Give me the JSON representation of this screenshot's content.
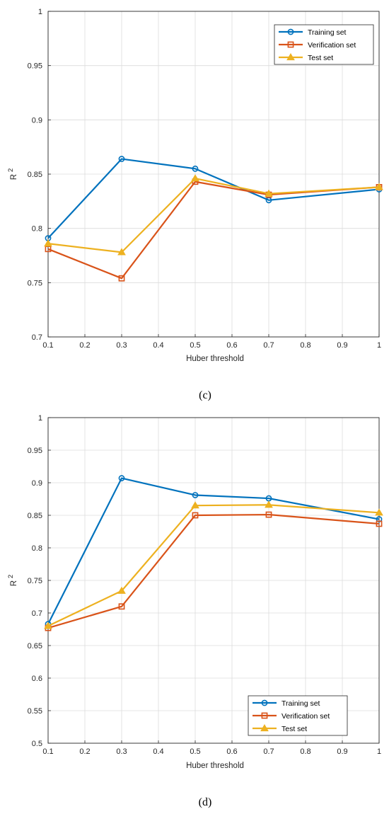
{
  "chart_data": [
    {
      "type": "line",
      "caption": "(c)",
      "xlabel": "Huber threshold",
      "ylabel": "R",
      "ylabel_superscript": "2",
      "x": [
        0.1,
        0.3,
        0.5,
        0.7,
        1.0
      ],
      "xlim": [
        0.1,
        1
      ],
      "ylim": [
        0.7,
        1
      ],
      "xticks": [
        "0.1",
        "0.2",
        "0.3",
        "0.4",
        "0.5",
        "0.6",
        "0.7",
        "0.8",
        "0.9",
        "1"
      ],
      "yticks": [
        "0.7",
        "0.75",
        "0.8",
        "0.85",
        "0.9",
        "0.95",
        "1"
      ],
      "grid": true,
      "legend_position": "top-right",
      "series": [
        {
          "name": "Training set",
          "values": [
            0.791,
            0.864,
            0.855,
            0.826,
            0.836
          ],
          "color": "#0072BD",
          "marker": "circle"
        },
        {
          "name": "Verification set",
          "values": [
            0.781,
            0.754,
            0.843,
            0.831,
            0.838
          ],
          "color": "#D95319",
          "marker": "square"
        },
        {
          "name": "Test set",
          "values": [
            0.786,
            0.778,
            0.846,
            0.832,
            0.838
          ],
          "color": "#EDB120",
          "marker": "triangle"
        }
      ]
    },
    {
      "type": "line",
      "caption": "(d)",
      "xlabel": "Huber threshold",
      "ylabel": "R",
      "ylabel_superscript": "2",
      "x": [
        0.1,
        0.3,
        0.5,
        0.7,
        1.0
      ],
      "xlim": [
        0.1,
        1
      ],
      "ylim": [
        0.5,
        1
      ],
      "xticks": [
        "0.1",
        "0.2",
        "0.3",
        "0.4",
        "0.5",
        "0.6",
        "0.7",
        "0.8",
        "0.9",
        "1"
      ],
      "yticks": [
        "0.5",
        "0.55",
        "0.6",
        "0.65",
        "0.7",
        "0.75",
        "0.8",
        "0.85",
        "0.9",
        "0.95",
        "1"
      ],
      "grid": true,
      "legend_position": "bottom-right",
      "series": [
        {
          "name": "Training set",
          "values": [
            0.683,
            0.907,
            0.881,
            0.876,
            0.844
          ],
          "color": "#0072BD",
          "marker": "circle"
        },
        {
          "name": "Verification set",
          "values": [
            0.677,
            0.71,
            0.85,
            0.851,
            0.837
          ],
          "color": "#D95319",
          "marker": "square"
        },
        {
          "name": "Test set",
          "values": [
            0.68,
            0.734,
            0.865,
            0.866,
            0.854
          ],
          "color": "#EDB120",
          "marker": "triangle"
        }
      ]
    }
  ]
}
